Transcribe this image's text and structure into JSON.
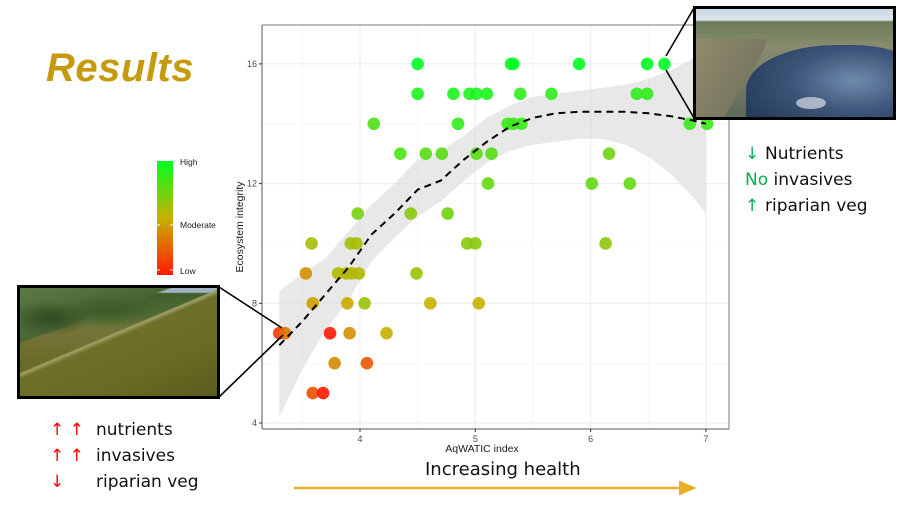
{
  "slide": {
    "title": "Results",
    "bottom_caption": "Increasing health",
    "right_notes": [
      {
        "marker": "↓",
        "text": "Nutrients"
      },
      {
        "marker": "No",
        "text": "invasives"
      },
      {
        "marker": "↑",
        "text": "riparian veg"
      }
    ],
    "left_notes": [
      {
        "marker": "↑ ↑",
        "text": "nutrients"
      },
      {
        "marker": "↑ ↑",
        "text": "invasives"
      },
      {
        "marker": "↓",
        "text": "riparian veg"
      }
    ],
    "photos": {
      "left": "aerial-photo-eutrophic-lake",
      "right": "aerial-photo-healthy-wetland"
    },
    "colors": {
      "title": "#c59a0c",
      "health_arrow": "#e8b024",
      "positive_marker": "#00b050",
      "negative_marker": "#ff0000"
    }
  },
  "chart_data": {
    "type": "scatter",
    "title": "",
    "xlabel": "AqWATIC index",
    "ylabel": "Ecosystem integrity",
    "xlim": [
      3.15,
      7.2
    ],
    "ylim": [
      3.8,
      17.3
    ],
    "xticks": [
      4,
      5,
      6,
      7
    ],
    "yticks": [
      4,
      8,
      12,
      16
    ],
    "grid": true,
    "legend": {
      "placement": "left",
      "type": "colorbar",
      "labels": [
        "High",
        "Moderate",
        "Low"
      ],
      "colors": [
        "#00ff22",
        "#c8b000",
        "#ff1a00"
      ]
    },
    "trend": {
      "type": "loess",
      "style": "dashed",
      "x": [
        3.3,
        3.5,
        3.7,
        3.9,
        4.1,
        4.3,
        4.5,
        4.7,
        4.9,
        5.1,
        5.3,
        5.5,
        5.7,
        5.9,
        6.1,
        6.3,
        6.5,
        6.7,
        6.9,
        7.0
      ],
      "y": [
        6.6,
        7.4,
        8.3,
        9.2,
        10.3,
        11.0,
        11.8,
        12.1,
        12.8,
        13.4,
        13.9,
        14.2,
        14.35,
        14.4,
        14.4,
        14.4,
        14.35,
        14.25,
        14.1,
        14.0
      ],
      "ci_lower": [
        4.2,
        5.8,
        7.1,
        8.1,
        9.4,
        10.2,
        10.9,
        11.4,
        12.1,
        12.7,
        13.1,
        13.3,
        13.4,
        13.5,
        13.5,
        13.3,
        12.9,
        12.3,
        11.5,
        11.0
      ],
      "ci_upper": [
        8.4,
        9.0,
        9.5,
        10.4,
        11.3,
        12.0,
        12.8,
        13.1,
        13.6,
        14.2,
        14.6,
        14.9,
        15.0,
        15.1,
        15.2,
        15.3,
        15.5,
        15.8,
        16.2,
        16.5
      ]
    },
    "points": [
      {
        "x": 4.5,
        "y": 16,
        "c": 1.0
      },
      {
        "x": 5.31,
        "y": 16,
        "c": 1.0
      },
      {
        "x": 5.33,
        "y": 16,
        "c": 1.0
      },
      {
        "x": 5.9,
        "y": 16,
        "c": 1.0
      },
      {
        "x": 6.49,
        "y": 16,
        "c": 1.0
      },
      {
        "x": 6.64,
        "y": 16,
        "c": 1.0
      },
      {
        "x": 4.5,
        "y": 15,
        "c": 0.93
      },
      {
        "x": 4.81,
        "y": 15,
        "c": 0.93
      },
      {
        "x": 4.95,
        "y": 15,
        "c": 0.93
      },
      {
        "x": 5.01,
        "y": 15,
        "c": 0.93
      },
      {
        "x": 5.1,
        "y": 15,
        "c": 0.93
      },
      {
        "x": 5.39,
        "y": 15,
        "c": 0.88
      },
      {
        "x": 5.66,
        "y": 15,
        "c": 0.88
      },
      {
        "x": 6.4,
        "y": 15,
        "c": 0.88
      },
      {
        "x": 6.49,
        "y": 15,
        "c": 0.88
      },
      {
        "x": 4.12,
        "y": 14,
        "c": 0.8
      },
      {
        "x": 4.85,
        "y": 14,
        "c": 0.88
      },
      {
        "x": 5.28,
        "y": 14,
        "c": 0.86
      },
      {
        "x": 5.33,
        "y": 14,
        "c": 0.86
      },
      {
        "x": 5.4,
        "y": 14,
        "c": 0.86
      },
      {
        "x": 6.86,
        "y": 14,
        "c": 0.86
      },
      {
        "x": 7.01,
        "y": 14,
        "c": 0.86
      },
      {
        "x": 4.35,
        "y": 13,
        "c": 0.82
      },
      {
        "x": 4.57,
        "y": 13,
        "c": 0.78
      },
      {
        "x": 4.71,
        "y": 13,
        "c": 0.78
      },
      {
        "x": 5.01,
        "y": 13,
        "c": 0.78
      },
      {
        "x": 5.14,
        "y": 13,
        "c": 0.78
      },
      {
        "x": 6.16,
        "y": 13,
        "c": 0.72
      },
      {
        "x": 5.11,
        "y": 12,
        "c": 0.76
      },
      {
        "x": 6.01,
        "y": 12,
        "c": 0.76
      },
      {
        "x": 6.34,
        "y": 12,
        "c": 0.76
      },
      {
        "x": 3.98,
        "y": 11,
        "c": 0.7
      },
      {
        "x": 4.44,
        "y": 11,
        "c": 0.66
      },
      {
        "x": 4.76,
        "y": 11,
        "c": 0.72
      },
      {
        "x": 3.58,
        "y": 10,
        "c": 0.58
      },
      {
        "x": 3.92,
        "y": 10,
        "c": 0.6
      },
      {
        "x": 3.97,
        "y": 10,
        "c": 0.58
      },
      {
        "x": 4.93,
        "y": 10,
        "c": 0.66
      },
      {
        "x": 5.0,
        "y": 10,
        "c": 0.66
      },
      {
        "x": 6.13,
        "y": 10,
        "c": 0.64
      },
      {
        "x": 3.53,
        "y": 9,
        "c": 0.4
      },
      {
        "x": 3.81,
        "y": 9,
        "c": 0.55
      },
      {
        "x": 3.88,
        "y": 9,
        "c": 0.55
      },
      {
        "x": 3.93,
        "y": 9,
        "c": 0.55
      },
      {
        "x": 3.99,
        "y": 9,
        "c": 0.55
      },
      {
        "x": 4.49,
        "y": 9,
        "c": 0.62
      },
      {
        "x": 3.59,
        "y": 8,
        "c": 0.45
      },
      {
        "x": 3.89,
        "y": 8,
        "c": 0.48
      },
      {
        "x": 4.04,
        "y": 8,
        "c": 0.62
      },
      {
        "x": 4.61,
        "y": 8,
        "c": 0.5
      },
      {
        "x": 5.03,
        "y": 8,
        "c": 0.5
      },
      {
        "x": 3.3,
        "y": 7,
        "c": 0.1
      },
      {
        "x": 3.35,
        "y": 7,
        "c": 0.3
      },
      {
        "x": 3.74,
        "y": 7,
        "c": 0.0
      },
      {
        "x": 3.91,
        "y": 7,
        "c": 0.4
      },
      {
        "x": 4.23,
        "y": 7,
        "c": 0.5
      },
      {
        "x": 3.78,
        "y": 6,
        "c": 0.38
      },
      {
        "x": 4.06,
        "y": 6,
        "c": 0.2
      },
      {
        "x": 3.59,
        "y": 5,
        "c": 0.18
      },
      {
        "x": 3.68,
        "y": 5,
        "c": 0.0
      }
    ]
  }
}
